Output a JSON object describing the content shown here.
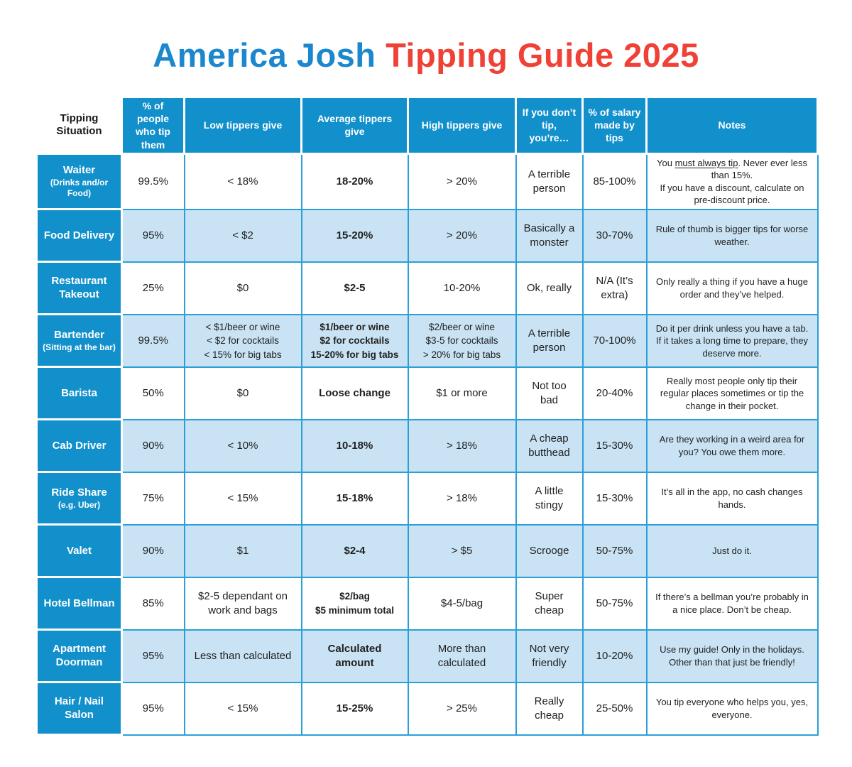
{
  "title": {
    "part_blue": "America Josh ",
    "part_red": "Tipping Guide 2025"
  },
  "colors": {
    "header_blue": "#1290cb",
    "row_light_blue": "#c9e3f4",
    "grid_blue": "#2ba0d8",
    "title_blue": "#1b87cd",
    "title_red": "#ef4136",
    "text": "#1f1f1f"
  },
  "chart_data": {
    "type": "table",
    "title": "America Josh Tipping Guide 2025",
    "columns": [
      "Tipping Situation",
      "% of people who tip them",
      "Low tippers give",
      "Average tippers give",
      "High tippers give",
      "If you don’t tip, you’re…",
      "% of salary made by tips",
      "Notes"
    ],
    "rows": [
      {
        "situation": "Waiter",
        "situation_sub": "(Drinks and/or Food)",
        "pct_who_tip": "99.5%",
        "low": "< 18%",
        "average": "18-20%",
        "high": "> 20%",
        "if_you_dont_tip": "A terrible person",
        "salary_pct": "85-100%",
        "notes": "You must always tip. Never ever less than 15%.\nIf you have a discount, calculate on pre-discount price.",
        "notes_underline": "must always tip"
      },
      {
        "situation": "Food Delivery",
        "situation_sub": "",
        "pct_who_tip": "95%",
        "low": "< $2",
        "average": "15-20%",
        "high": "> 20%",
        "if_you_dont_tip": "Basically a monster",
        "salary_pct": "30-70%",
        "notes": "Rule of thumb is bigger tips for worse weather."
      },
      {
        "situation": "Restaurant Takeout",
        "situation_sub": "",
        "pct_who_tip": "25%",
        "low": "$0",
        "average": "$2-5",
        "high": "10-20%",
        "if_you_dont_tip": "Ok, really",
        "salary_pct": "N/A (It’s extra)",
        "notes": "Only really a thing if you have a huge order and they’ve helped."
      },
      {
        "situation": "Bartender",
        "situation_sub": "(Sitting at the bar)",
        "pct_who_tip": "99.5%",
        "low": "< $1/beer or wine\n< $2 for cocktails\n< 15% for big tabs",
        "average": "$1/beer or wine\n$2 for cocktails\n15-20% for big tabs",
        "high": "$2/beer or wine\n$3-5 for cocktails\n> 20% for big tabs",
        "if_you_dont_tip": "A terrible person",
        "salary_pct": "70-100%",
        "notes": "Do it per drink unless you have a tab. If it takes a long time to prepare, they deserve more."
      },
      {
        "situation": "Barista",
        "situation_sub": "",
        "pct_who_tip": "50%",
        "low": "$0",
        "average": "Loose change",
        "high": "$1 or more",
        "if_you_dont_tip": "Not too bad",
        "salary_pct": "20-40%",
        "notes": "Really most people only tip their regular places sometimes or tip the change in their pocket."
      },
      {
        "situation": "Cab Driver",
        "situation_sub": "",
        "pct_who_tip": "90%",
        "low": "< 10%",
        "average": "10-18%",
        "high": "> 18%",
        "if_you_dont_tip": "A cheap butthead",
        "salary_pct": "15-30%",
        "notes": "Are they working in a weird area for you? You owe them more."
      },
      {
        "situation": "Ride Share",
        "situation_sub": "(e.g. Uber)",
        "pct_who_tip": "75%",
        "low": "< 15%",
        "average": "15-18%",
        "high": "> 18%",
        "if_you_dont_tip": "A little stingy",
        "salary_pct": "15-30%",
        "notes": "It’s all in the app, no cash changes hands."
      },
      {
        "situation": "Valet",
        "situation_sub": "",
        "pct_who_tip": "90%",
        "low": "$1",
        "average": "$2-4",
        "high": "> $5",
        "if_you_dont_tip": "Scrooge",
        "salary_pct": "50-75%",
        "notes": "Just do it."
      },
      {
        "situation": "Hotel Bellman",
        "situation_sub": "",
        "pct_who_tip": "85%",
        "low": "$2-5 dependant on work and bags",
        "average": "$2/bag\n$5 minimum total",
        "high": "$4-5/bag",
        "if_you_dont_tip": "Super cheap",
        "salary_pct": "50-75%",
        "notes": "If there’s a bellman you’re probably in a nice place. Don’t be cheap."
      },
      {
        "situation": "Apartment Doorman",
        "situation_sub": "",
        "pct_who_tip": "95%",
        "low": "Less than calculated",
        "average": "Calculated amount",
        "high": "More than calculated",
        "if_you_dont_tip": "Not very friendly",
        "salary_pct": "10-20%",
        "notes": "Use my guide! Only in the holidays. Other than that just be friendly!"
      },
      {
        "situation": "Hair / Nail Salon",
        "situation_sub": "",
        "pct_who_tip": "95%",
        "low": "< 15%",
        "average": "15-25%",
        "high": "> 25%",
        "if_you_dont_tip": "Really cheap",
        "salary_pct": "25-50%",
        "notes": "You tip everyone who helps you, yes, everyone."
      }
    ]
  }
}
